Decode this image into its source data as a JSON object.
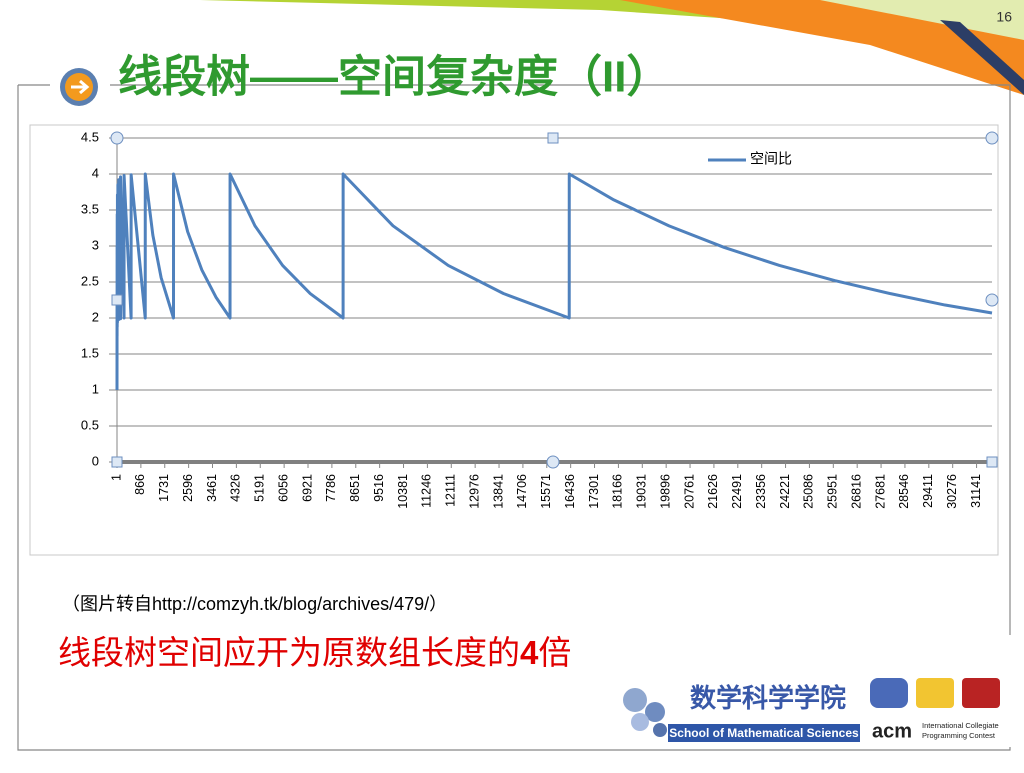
{
  "slide": {
    "page_number": "16",
    "title": "线段树——空间复杂度（II）",
    "caption_prefix": "（图片转自",
    "caption_url": "http://comzyh.tk/blog/archives/479/",
    "caption_suffix": "）",
    "conclusion": "线段树空间应开为原数组长度的",
    "conclusion_num": "4",
    "conclusion_suffix": "倍",
    "school_cn": "数学科学学院",
    "school_en": "School of Mathematical Sciences",
    "acm": "acm",
    "acm_line1": "International Collegiate",
    "acm_line2": "Programming Contest"
  },
  "chart_data": {
    "type": "line",
    "x": [
      1,
      2,
      3,
      4,
      5,
      8,
      9,
      16,
      17,
      32,
      33,
      64,
      65,
      128,
      129,
      256,
      257,
      512,
      513,
      1024,
      1025,
      1300,
      1600,
      2048,
      2049,
      2560,
      3072,
      3584,
      4096,
      4097,
      5000,
      6000,
      7000,
      8192,
      8193,
      10000,
      12000,
      14000,
      16384,
      16385,
      18000,
      20000,
      22000,
      24000,
      26000,
      28000,
      30000,
      31700
    ],
    "series": [
      {
        "name": "空间比",
        "color": "#4f81bd",
        "values": [
          1,
          1.5,
          2.33,
          1.75,
          3,
          1.88,
          3.44,
          1.94,
          3.71,
          1.97,
          3.85,
          1.98,
          3.92,
          1.99,
          3.96,
          2,
          3.98,
          2,
          3.99,
          2,
          4,
          3.15,
          2.56,
          2,
          4,
          3.2,
          2.67,
          2.29,
          2,
          4,
          3.28,
          2.73,
          2.34,
          2,
          4,
          3.28,
          2.73,
          2.34,
          2,
          4,
          3.64,
          3.28,
          2.98,
          2.73,
          2.52,
          2.34,
          2.18,
          2.07
        ]
      }
    ],
    "xlim": [
      1,
      31700
    ],
    "xticks": [
      1,
      866,
      1731,
      2596,
      3461,
      4326,
      5191,
      6056,
      6921,
      7786,
      8651,
      9516,
      10381,
      11246,
      12111,
      12976,
      13841,
      14706,
      15571,
      16436,
      17301,
      18166,
      19031,
      19896,
      20761,
      21626,
      22491,
      23356,
      24221,
      25086,
      25951,
      26816,
      27681,
      28546,
      29411,
      30276,
      31141
    ],
    "ylim": [
      0,
      4.5
    ],
    "yticks": [
      0,
      0.5,
      1,
      1.5,
      2,
      2.5,
      3,
      3.5,
      4,
      4.5
    ],
    "grid": true,
    "legend": "top-right"
  }
}
